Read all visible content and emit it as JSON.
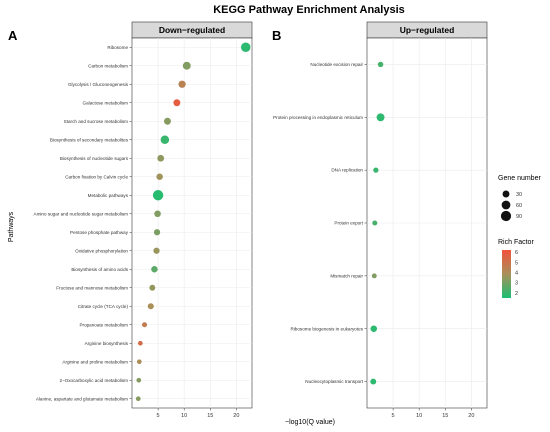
{
  "figure": {
    "title": "KEGG Pathway Enrichment Analysis",
    "y_axis_title": "Pathways",
    "x_axis_title": "−log10(Q value)",
    "legend": {
      "size_title": "Gene number",
      "size_labels": [
        "30",
        "60",
        "90"
      ],
      "color_title": "Rich Factor",
      "color_labels": [
        "6",
        "5",
        "4",
        "3",
        "2"
      ]
    }
  },
  "colors": {
    "low": "#1bbf72",
    "mid": "#a8905a",
    "high": "#f0533c",
    "strip_bg": "#d9d9d9",
    "grid": "#ebebeb"
  },
  "chart_data": [
    {
      "type": "scatter",
      "panel_letter": "A",
      "strip_title": "Down−regulated",
      "xlim": [
        0,
        23
      ],
      "x_ticks": [
        5,
        10,
        15,
        20
      ],
      "categories": [
        "Ribosome",
        "Carbon metabolism",
        "Glycolysis / Gluconeogenesis",
        "Galactose metabolism",
        "Starch and sucrose metabolism",
        "Biosynthesis of secondary metabolites",
        "Biosynthesis of nucleotide sugars",
        "Carbon fixation by Calvin cycle",
        "Metabolic pathways",
        "Amino sugar and nucleotide sugar metabolism",
        "Pentose phosphate pathway",
        "Oxidative phosphorylation",
        "Biosynthesis of amino acids",
        "Fructose and mannose metabolism",
        "Citrate cycle (TCA cycle)",
        "Propanoate metabolism",
        "Arginine biosynthesis",
        "Arginine and proline metabolism",
        "2−Oxocarboxylic acid metabolism",
        "Alanine, aspartate and glutamate metabolism"
      ],
      "points": [
        {
          "x": 21.8,
          "gene_number": 75,
          "rich_factor": 1.8
        },
        {
          "x": 10.5,
          "gene_number": 45,
          "rich_factor": 3.2
        },
        {
          "x": 9.6,
          "gene_number": 35,
          "rich_factor": 4.4
        },
        {
          "x": 8.6,
          "gene_number": 30,
          "rich_factor": 5.8
        },
        {
          "x": 6.8,
          "gene_number": 30,
          "rich_factor": 3.3
        },
        {
          "x": 6.3,
          "gene_number": 55,
          "rich_factor": 2.0
        },
        {
          "x": 5.5,
          "gene_number": 28,
          "rich_factor": 3.4
        },
        {
          "x": 5.3,
          "gene_number": 25,
          "rich_factor": 3.7
        },
        {
          "x": 5.0,
          "gene_number": 95,
          "rich_factor": 1.7
        },
        {
          "x": 4.9,
          "gene_number": 26,
          "rich_factor": 3.2
        },
        {
          "x": 4.8,
          "gene_number": 22,
          "rich_factor": 3.1
        },
        {
          "x": 4.7,
          "gene_number": 22,
          "rich_factor": 3.6
        },
        {
          "x": 4.3,
          "gene_number": 25,
          "rich_factor": 2.6
        },
        {
          "x": 3.9,
          "gene_number": 18,
          "rich_factor": 3.5
        },
        {
          "x": 3.6,
          "gene_number": 20,
          "rich_factor": 3.9
        },
        {
          "x": 2.4,
          "gene_number": 10,
          "rich_factor": 4.7
        },
        {
          "x": 1.6,
          "gene_number": 8,
          "rich_factor": 5.2
        },
        {
          "x": 1.4,
          "gene_number": 8,
          "rich_factor": 3.9
        },
        {
          "x": 1.3,
          "gene_number": 8,
          "rich_factor": 3.3
        },
        {
          "x": 1.2,
          "gene_number": 8,
          "rich_factor": 3.3
        }
      ]
    },
    {
      "type": "scatter",
      "panel_letter": "B",
      "strip_title": "Up−regulated",
      "xlim": [
        0,
        23
      ],
      "x_ticks": [
        5,
        10,
        15,
        20
      ],
      "categories": [
        "Nucleotide excision repair",
        "Protein processing in endoplasmic reticulum",
        "DNA replication",
        "Protein export",
        "Mismatch repair",
        "Ribosome biogenesis in eukaryotes",
        "Nucleocytoplasmic transport"
      ],
      "points": [
        {
          "x": 2.6,
          "gene_number": 14,
          "rich_factor": 2.2
        },
        {
          "x": 2.6,
          "gene_number": 45,
          "rich_factor": 1.8
        },
        {
          "x": 1.7,
          "gene_number": 12,
          "rich_factor": 2.0
        },
        {
          "x": 1.5,
          "gene_number": 10,
          "rich_factor": 2.2
        },
        {
          "x": 1.4,
          "gene_number": 9,
          "rich_factor": 3.2
        },
        {
          "x": 1.3,
          "gene_number": 25,
          "rich_factor": 1.8
        },
        {
          "x": 1.2,
          "gene_number": 18,
          "rich_factor": 1.8
        }
      ]
    }
  ]
}
